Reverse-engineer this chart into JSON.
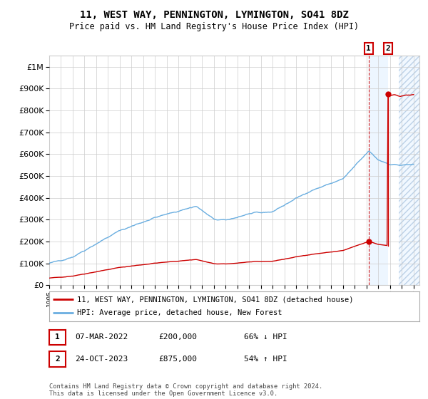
{
  "title": "11, WEST WAY, PENNINGTON, LYMINGTON, SO41 8DZ",
  "subtitle": "Price paid vs. HM Land Registry's House Price Index (HPI)",
  "ylim": [
    0,
    1050000
  ],
  "xlim_start": 1995.0,
  "xlim_end": 2026.5,
  "hpi_color": "#6aaee0",
  "price_color": "#cc0000",
  "transaction1_year": 2022.18,
  "transaction1_price": 200000,
  "transaction2_year": 2023.81,
  "transaction2_price": 875000,
  "legend_label1": "11, WEST WAY, PENNINGTON, LYMINGTON, SO41 8DZ (detached house)",
  "legend_label2": "HPI: Average price, detached house, New Forest",
  "note1_label": "1",
  "note1_date": "07-MAR-2022",
  "note1_price": "£200,000",
  "note1_hpi": "66% ↓ HPI",
  "note2_label": "2",
  "note2_date": "24-OCT-2023",
  "note2_price": "£875,000",
  "note2_hpi": "54% ↑ HPI",
  "footer": "Contains HM Land Registry data © Crown copyright and database right 2024.\nThis data is licensed under the Open Government Licence v3.0.",
  "background_color": "#ffffff",
  "grid_color": "#cccccc",
  "future_start": 2024.75,
  "shade_color": "#ddeeff"
}
